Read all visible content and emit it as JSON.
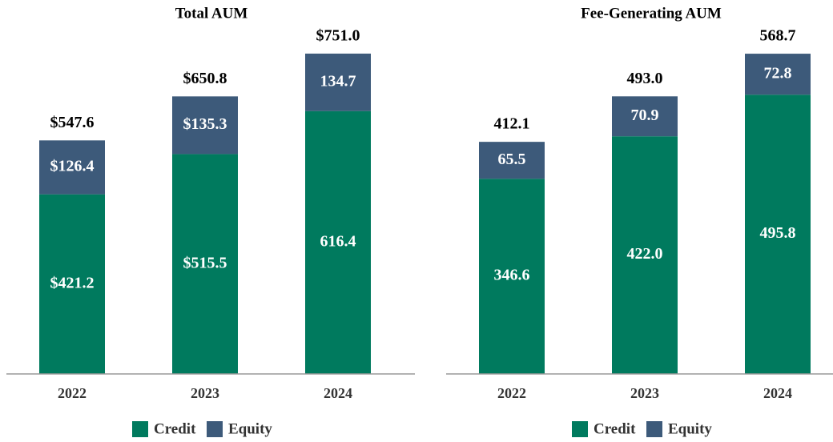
{
  "chart_data": [
    {
      "type": "stacked_bar",
      "title": "Total AUM",
      "categories": [
        "2022",
        "2023",
        "2024"
      ],
      "series": [
        {
          "name": "Credit",
          "color": "#007a5e",
          "values": [
            421.2,
            515.5,
            616.4
          ],
          "value_labels": [
            "$421.2",
            "$515.5",
            "616.4"
          ]
        },
        {
          "name": "Equity",
          "color": "#3d5a7a",
          "values": [
            126.4,
            135.3,
            134.7
          ],
          "value_labels": [
            "$126.4",
            "$135.3",
            "134.7"
          ]
        }
      ],
      "totals": [
        547.6,
        650.8,
        751.0
      ],
      "total_labels": [
        "$547.6",
        "$650.8",
        "$751.0"
      ]
    },
    {
      "type": "stacked_bar",
      "title": "Fee-Generating AUM",
      "categories": [
        "2022",
        "2023",
        "2024"
      ],
      "series": [
        {
          "name": "Credit",
          "color": "#007a5e",
          "values": [
            346.6,
            422.0,
            495.8
          ],
          "value_labels": [
            "346.6",
            "422.0",
            "495.8"
          ]
        },
        {
          "name": "Equity",
          "color": "#3d5a7a",
          "values": [
            65.5,
            70.9,
            72.8
          ],
          "value_labels": [
            "65.5",
            "70.9",
            "72.8"
          ]
        }
      ],
      "totals": [
        412.1,
        493.0,
        568.7
      ],
      "total_labels": [
        "412.1",
        "493.0",
        "568.7"
      ]
    }
  ]
}
